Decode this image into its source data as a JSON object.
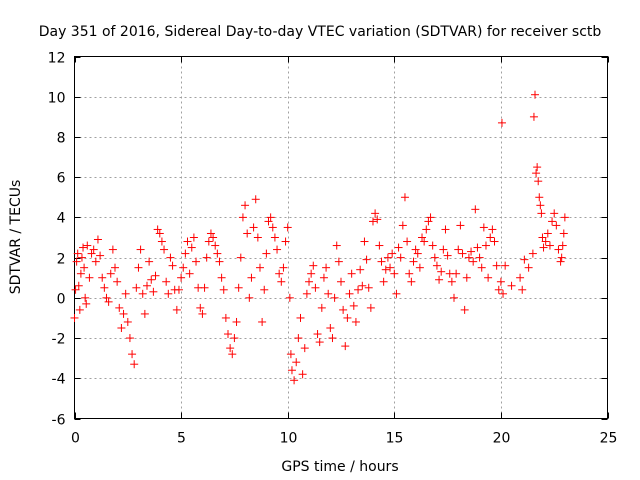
{
  "chart_data": {
    "type": "scatter",
    "title": "Day 351 of 2016, Sidereal Day-to-day VTEC variation (SDTVAR) for receiver sctb",
    "xlabel": "GPS time / hours",
    "ylabel": "SDTVAR / TECUs",
    "xlim": [
      0,
      25
    ],
    "ylim": [
      -6,
      12
    ],
    "xticks": [
      0,
      5,
      10,
      15,
      20,
      25
    ],
    "yticks": [
      -6,
      -4,
      -2,
      0,
      2,
      4,
      6,
      8,
      10,
      12
    ],
    "grid": true,
    "marker": "+",
    "marker_color": "#ff0000",
    "series": [
      {
        "name": "SDTVAR",
        "points": [
          [
            0.0,
            -1.0
          ],
          [
            0.05,
            0.4
          ],
          [
            0.1,
            1.8
          ],
          [
            0.15,
            2.2
          ],
          [
            0.2,
            0.6
          ],
          [
            0.25,
            -0.6
          ],
          [
            0.3,
            1.2
          ],
          [
            0.35,
            2.0
          ],
          [
            0.4,
            2.5
          ],
          [
            0.45,
            1.5
          ],
          [
            0.5,
            0.0
          ],
          [
            0.55,
            -0.3
          ],
          [
            0.6,
            2.6
          ],
          [
            0.7,
            1.0
          ],
          [
            0.8,
            2.2
          ],
          [
            0.9,
            2.4
          ],
          [
            1.0,
            1.8
          ],
          [
            1.1,
            2.9
          ],
          [
            1.2,
            2.1
          ],
          [
            1.3,
            1.0
          ],
          [
            1.4,
            0.5
          ],
          [
            1.5,
            0.0
          ],
          [
            1.6,
            -0.2
          ],
          [
            1.7,
            1.2
          ],
          [
            1.8,
            2.4
          ],
          [
            1.9,
            1.5
          ],
          [
            2.0,
            0.8
          ],
          [
            2.1,
            -0.5
          ],
          [
            2.2,
            -1.5
          ],
          [
            2.3,
            -0.8
          ],
          [
            2.4,
            0.2
          ],
          [
            2.5,
            -1.2
          ],
          [
            2.6,
            -2.0
          ],
          [
            2.7,
            -2.8
          ],
          [
            2.8,
            -3.3
          ],
          [
            2.9,
            0.5
          ],
          [
            3.0,
            1.5
          ],
          [
            3.1,
            2.4
          ],
          [
            3.2,
            0.2
          ],
          [
            3.3,
            -0.8
          ],
          [
            3.4,
            0.6
          ],
          [
            3.5,
            1.8
          ],
          [
            3.6,
            0.9
          ],
          [
            3.7,
            0.3
          ],
          [
            3.8,
            1.1
          ],
          [
            3.9,
            3.4
          ],
          [
            4.0,
            3.2
          ],
          [
            4.1,
            2.8
          ],
          [
            4.2,
            2.4
          ],
          [
            4.3,
            0.8
          ],
          [
            4.4,
            0.2
          ],
          [
            4.5,
            2.0
          ],
          [
            4.6,
            1.6
          ],
          [
            4.7,
            0.4
          ],
          [
            4.8,
            -0.6
          ],
          [
            4.9,
            0.4
          ],
          [
            5.0,
            1.0
          ],
          [
            5.1,
            1.5
          ],
          [
            5.2,
            2.2
          ],
          [
            5.3,
            2.8
          ],
          [
            5.4,
            1.2
          ],
          [
            5.5,
            2.5
          ],
          [
            5.6,
            3.0
          ],
          [
            5.7,
            1.8
          ],
          [
            5.8,
            0.5
          ],
          [
            5.9,
            -0.5
          ],
          [
            6.0,
            -0.8
          ],
          [
            6.1,
            0.5
          ],
          [
            6.2,
            2.0
          ],
          [
            6.3,
            2.8
          ],
          [
            6.4,
            3.2
          ],
          [
            6.5,
            3.0
          ],
          [
            6.6,
            2.6
          ],
          [
            6.7,
            2.2
          ],
          [
            6.8,
            1.8
          ],
          [
            6.9,
            1.0
          ],
          [
            7.0,
            0.4
          ],
          [
            7.1,
            -1.0
          ],
          [
            7.2,
            -1.8
          ],
          [
            7.3,
            -2.5
          ],
          [
            7.4,
            -2.8
          ],
          [
            7.5,
            -2.0
          ],
          [
            7.6,
            -1.2
          ],
          [
            7.7,
            0.5
          ],
          [
            7.8,
            2.0
          ],
          [
            7.9,
            4.0
          ],
          [
            8.0,
            4.6
          ],
          [
            8.1,
            3.2
          ],
          [
            8.2,
            0.0
          ],
          [
            8.3,
            1.0
          ],
          [
            8.4,
            3.5
          ],
          [
            8.5,
            4.9
          ],
          [
            8.6,
            3.0
          ],
          [
            8.7,
            1.5
          ],
          [
            8.8,
            -1.2
          ],
          [
            8.9,
            0.4
          ],
          [
            9.0,
            2.2
          ],
          [
            9.1,
            3.8
          ],
          [
            9.2,
            4.0
          ],
          [
            9.3,
            3.5
          ],
          [
            9.4,
            3.0
          ],
          [
            9.5,
            2.4
          ],
          [
            9.6,
            1.2
          ],
          [
            9.7,
            0.8
          ],
          [
            9.8,
            1.5
          ],
          [
            9.9,
            2.8
          ],
          [
            10.0,
            3.5
          ],
          [
            10.1,
            0.0
          ],
          [
            10.15,
            -2.8
          ],
          [
            10.2,
            -3.6
          ],
          [
            10.3,
            -4.1
          ],
          [
            10.4,
            -3.2
          ],
          [
            10.5,
            -2.0
          ],
          [
            10.6,
            -1.0
          ],
          [
            10.7,
            -3.8
          ],
          [
            10.8,
            -2.5
          ],
          [
            10.9,
            0.2
          ],
          [
            11.0,
            0.8
          ],
          [
            11.1,
            1.2
          ],
          [
            11.2,
            1.6
          ],
          [
            11.3,
            0.5
          ],
          [
            11.4,
            -1.8
          ],
          [
            11.5,
            -2.2
          ],
          [
            11.6,
            -0.5
          ],
          [
            11.7,
            1.0
          ],
          [
            11.8,
            1.5
          ],
          [
            11.9,
            0.2
          ],
          [
            12.0,
            -1.5
          ],
          [
            12.1,
            -2.0
          ],
          [
            12.2,
            0.0
          ],
          [
            12.3,
            2.6
          ],
          [
            12.4,
            1.8
          ],
          [
            12.5,
            0.8
          ],
          [
            12.6,
            -0.6
          ],
          [
            12.7,
            -2.4
          ],
          [
            12.8,
            -1.0
          ],
          [
            12.9,
            0.2
          ],
          [
            13.0,
            1.2
          ],
          [
            13.1,
            -0.4
          ],
          [
            13.2,
            -1.2
          ],
          [
            13.3,
            0.4
          ],
          [
            13.4,
            1.4
          ],
          [
            13.5,
            0.6
          ],
          [
            13.6,
            2.8
          ],
          [
            13.7,
            1.9
          ],
          [
            13.8,
            0.5
          ],
          [
            13.9,
            -0.5
          ],
          [
            14.0,
            3.8
          ],
          [
            14.1,
            4.2
          ],
          [
            14.2,
            3.9
          ],
          [
            14.3,
            2.6
          ],
          [
            14.4,
            1.8
          ],
          [
            14.5,
            0.8
          ],
          [
            14.6,
            1.4
          ],
          [
            14.7,
            2.0
          ],
          [
            14.8,
            1.5
          ],
          [
            14.9,
            2.2
          ],
          [
            15.0,
            1.2
          ],
          [
            15.1,
            0.2
          ],
          [
            15.2,
            2.5
          ],
          [
            15.3,
            2.0
          ],
          [
            15.4,
            3.6
          ],
          [
            15.5,
            5.0
          ],
          [
            15.6,
            2.8
          ],
          [
            15.7,
            1.2
          ],
          [
            15.8,
            0.8
          ],
          [
            15.9,
            1.8
          ],
          [
            16.0,
            2.4
          ],
          [
            16.1,
            2.2
          ],
          [
            16.2,
            1.5
          ],
          [
            16.3,
            3.0
          ],
          [
            16.4,
            2.8
          ],
          [
            16.5,
            3.4
          ],
          [
            16.6,
            3.8
          ],
          [
            16.7,
            4.0
          ],
          [
            16.8,
            2.6
          ],
          [
            16.9,
            2.0
          ],
          [
            17.0,
            1.6
          ],
          [
            17.1,
            0.9
          ],
          [
            17.2,
            1.3
          ],
          [
            17.3,
            2.4
          ],
          [
            17.4,
            3.4
          ],
          [
            17.5,
            2.1
          ],
          [
            17.6,
            1.2
          ],
          [
            17.7,
            0.8
          ],
          [
            17.8,
            0.0
          ],
          [
            17.9,
            1.2
          ],
          [
            18.0,
            2.4
          ],
          [
            18.1,
            3.6
          ],
          [
            18.2,
            2.2
          ],
          [
            18.3,
            -0.6
          ],
          [
            18.4,
            1.0
          ],
          [
            18.5,
            2.0
          ],
          [
            18.6,
            2.3
          ],
          [
            18.7,
            1.8
          ],
          [
            18.8,
            4.4
          ],
          [
            18.9,
            2.5
          ],
          [
            19.0,
            2.0
          ],
          [
            19.1,
            1.5
          ],
          [
            19.2,
            3.5
          ],
          [
            19.3,
            2.6
          ],
          [
            19.4,
            1.0
          ],
          [
            19.5,
            3.0
          ],
          [
            19.6,
            3.4
          ],
          [
            19.7,
            2.8
          ],
          [
            19.8,
            1.6
          ],
          [
            19.9,
            0.4
          ],
          [
            20.0,
            0.8
          ],
          [
            20.05,
            8.7
          ],
          [
            20.1,
            0.2
          ],
          [
            20.2,
            1.6
          ],
          [
            20.5,
            0.6
          ],
          [
            20.9,
            1.0
          ],
          [
            21.0,
            0.4
          ],
          [
            21.1,
            1.9
          ],
          [
            21.3,
            1.5
          ],
          [
            21.5,
            2.2
          ],
          [
            21.55,
            9.0
          ],
          [
            21.6,
            10.1
          ],
          [
            21.65,
            6.2
          ],
          [
            21.7,
            6.5
          ],
          [
            21.75,
            5.8
          ],
          [
            21.8,
            5.0
          ],
          [
            21.85,
            4.6
          ],
          [
            21.9,
            4.2
          ],
          [
            21.95,
            3.0
          ],
          [
            22.0,
            2.5
          ],
          [
            22.1,
            2.8
          ],
          [
            22.2,
            3.2
          ],
          [
            22.3,
            2.6
          ],
          [
            22.4,
            3.8
          ],
          [
            22.5,
            4.2
          ],
          [
            22.6,
            3.6
          ],
          [
            22.7,
            2.4
          ],
          [
            22.8,
            1.8
          ],
          [
            22.85,
            2.0
          ],
          [
            22.9,
            2.6
          ],
          [
            22.95,
            3.2
          ],
          [
            23.0,
            4.0
          ]
        ]
      }
    ]
  }
}
